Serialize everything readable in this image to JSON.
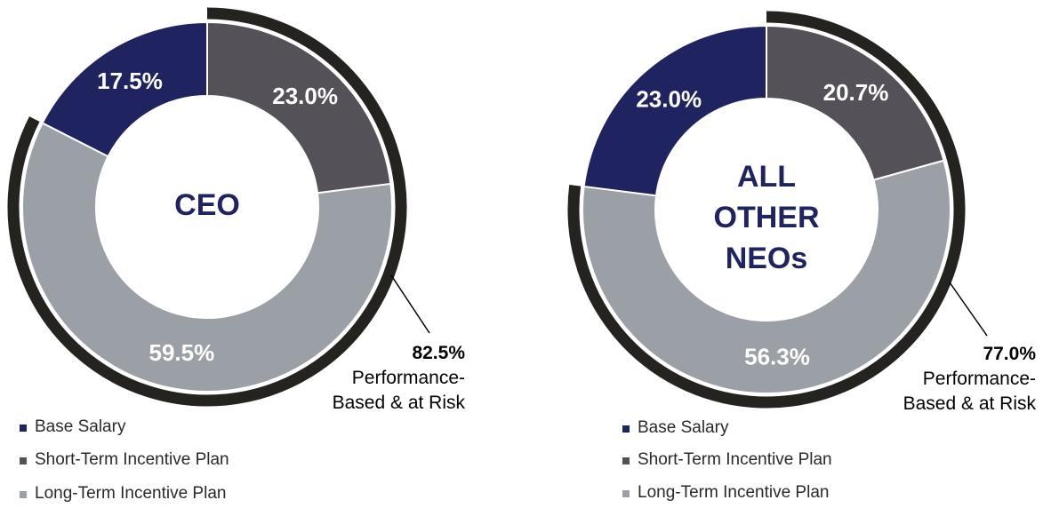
{
  "colors": {
    "base_salary": "#1f2461",
    "short_term": "#555159",
    "long_term": "#9aa0a6",
    "arc": "#25231f",
    "center_text": "#1f2461"
  },
  "chart_data": [
    {
      "type": "pie",
      "title": "CEO",
      "title_lines": [
        "CEO"
      ],
      "categories": [
        "Base Salary",
        "Short-Term Incentive Plan",
        "Long-Term Incentive Plan"
      ],
      "values": [
        17.5,
        23.0,
        59.5
      ],
      "value_labels": [
        "17.5%",
        "23.0%",
        "59.5%"
      ],
      "legend": [
        "Base Salary",
        "Short-Term Incentive Plan",
        "Long-Term Incentive Plan"
      ],
      "legend_placement": "bottom-left",
      "annotation": {
        "value": 82.5,
        "value_label": "82.5%",
        "lines": [
          "Performance-",
          "Based & at Risk"
        ]
      }
    },
    {
      "type": "pie",
      "title": "ALL OTHER NEOs",
      "title_lines": [
        "ALL",
        "OTHER",
        "NEOs"
      ],
      "categories": [
        "Base Salary",
        "Short-Term Incentive Plan",
        "Long-Term Incentive Plan"
      ],
      "values": [
        23.0,
        20.7,
        56.3
      ],
      "value_labels": [
        "23.0%",
        "20.7%",
        "56.3%"
      ],
      "legend": [
        "Base Salary",
        "Short-Term Incentive Plan",
        "Long-Term Incentive Plan"
      ],
      "legend_placement": "bottom-left",
      "annotation": {
        "value": 77.0,
        "value_label": "77.0%",
        "lines": [
          "Performance-",
          "Based & at Risk"
        ]
      }
    }
  ]
}
